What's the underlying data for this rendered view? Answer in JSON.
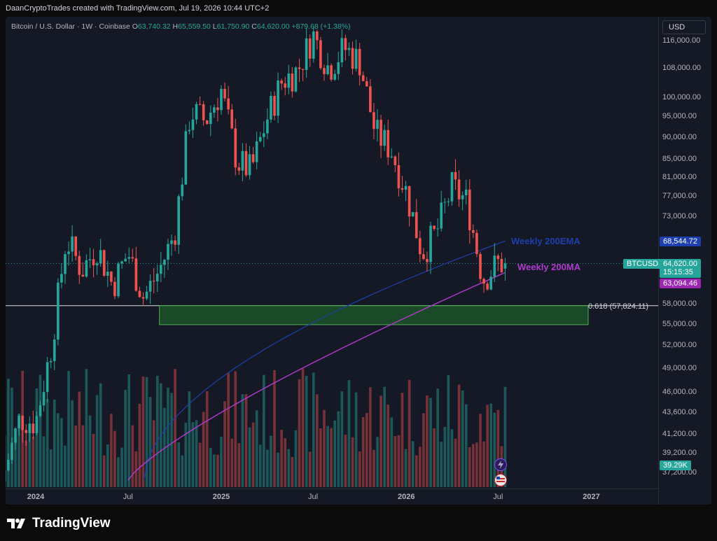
{
  "caption": "DaanCryptoTrades created with TradingView.com, Jul 19, 2026 10:44 UTC+2",
  "symbol": {
    "name": "Bitcoin / U.S. Dollar · 1W · Coinbase",
    "o_label": "O",
    "o_value": "63,740.32",
    "h_label": "H",
    "h_value": "65,559.50",
    "l_label": "L",
    "l_value": "61,750.90",
    "c_label": "C",
    "c_value": "64,620.00",
    "change": "+879.68 (+1.38%)"
  },
  "currency": "USD",
  "price_ticks": [
    "116,000.00",
    "108,000.00",
    "100,000.00",
    "95,000.00",
    "90,000.00",
    "85,000.00",
    "81,000.00",
    "77,000.00",
    "73,000.00",
    "58,000.00",
    "55,000.00",
    "52,000.00",
    "49,000.00",
    "46,000.00",
    "43,600.00",
    "41,200.00",
    "39,200.00",
    "37,200.00"
  ],
  "time_ticks": [
    {
      "label": "2024",
      "bold": true
    },
    {
      "label": "Jul",
      "bold": false
    },
    {
      "label": "2025",
      "bold": true
    },
    {
      "label": "Jul",
      "bold": false
    },
    {
      "label": "2026",
      "bold": true
    },
    {
      "label": "Jul",
      "bold": false
    },
    {
      "label": "2027",
      "bold": true
    }
  ],
  "tags": {
    "ema_value": "68,544.72",
    "symbol_tag": "BTCUSD",
    "last_price": "64,620.00",
    "countdown": "15:15:35",
    "ma_value": "63,094.46",
    "volume": "39.29K"
  },
  "annotations": {
    "ema_label": "Weekly 200EMA",
    "ma_label": "Weekly 200MA",
    "fib_label": "0.618 (57,824.11)"
  },
  "brand": "TradingView",
  "colors": {
    "up": "#26a69a",
    "down": "#ef5350",
    "ema": "#1e3fae",
    "ma": "#b03ad0",
    "zone": "#1e5b2a",
    "zone_border": "#4caf50",
    "bg": "#151925"
  },
  "chart_data": {
    "type": "candlestick",
    "interval": "1W",
    "exchange": "Coinbase",
    "x_range": [
      "2023-10",
      "2027-03"
    ],
    "y_scale": "log",
    "y_range": [
      36000,
      120000
    ],
    "weekly_closes_approx": [
      {
        "date": "2023-11",
        "close": 37500
      },
      {
        "date": "2023-12",
        "close": 43000
      },
      {
        "date": "2024-01",
        "close": 42500
      },
      {
        "date": "2024-02",
        "close": 52000
      },
      {
        "date": "2024-03",
        "close": 69000
      },
      {
        "date": "2024-04",
        "close": 63500
      },
      {
        "date": "2024-05",
        "close": 67500
      },
      {
        "date": "2024-06",
        "close": 61000
      },
      {
        "date": "2024-07",
        "close": 66500
      },
      {
        "date": "2024-08",
        "close": 59000
      },
      {
        "date": "2024-09",
        "close": 63500
      },
      {
        "date": "2024-10",
        "close": 70000
      },
      {
        "date": "2024-11",
        "close": 96500
      },
      {
        "date": "2024-12",
        "close": 94000
      },
      {
        "date": "2025-01",
        "close": 102000
      },
      {
        "date": "2025-02",
        "close": 84500
      },
      {
        "date": "2025-03",
        "close": 82500
      },
      {
        "date": "2025-04",
        "close": 94500
      },
      {
        "date": "2025-05",
        "close": 104500
      },
      {
        "date": "2025-06",
        "close": 107500
      },
      {
        "date": "2025-07",
        "close": 118000
      },
      {
        "date": "2025-08",
        "close": 108000
      },
      {
        "date": "2025-09",
        "close": 114000
      },
      {
        "date": "2025-10",
        "close": 110000
      },
      {
        "date": "2025-11",
        "close": 91000
      },
      {
        "date": "2025-12",
        "close": 87500
      },
      {
        "date": "2026-01",
        "close": 78000
      },
      {
        "date": "2026-02",
        "close": 66500
      },
      {
        "date": "2026-03",
        "close": 70000
      },
      {
        "date": "2026-04",
        "close": 79000
      },
      {
        "date": "2026-05",
        "close": 76000
      },
      {
        "date": "2026-06",
        "close": 62000
      },
      {
        "date": "2026-07",
        "close": 64620
      }
    ],
    "indicators": [
      {
        "name": "Weekly 200EMA",
        "last": 68544.72
      },
      {
        "name": "Weekly 200MA",
        "last": 63094.46
      }
    ],
    "levels": [
      {
        "name": "0.618",
        "value": 57824.11
      },
      {
        "name": "support zone",
        "from": 55000,
        "to": 57824
      }
    ],
    "volume_last": "39.29K"
  }
}
